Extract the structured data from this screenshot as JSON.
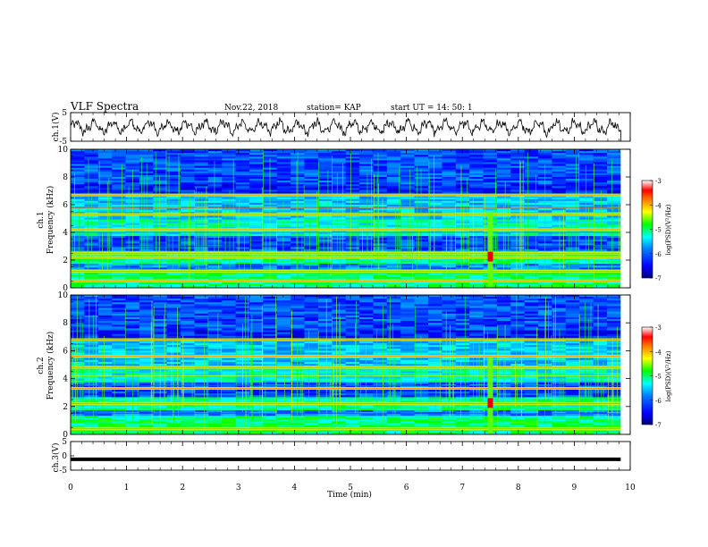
{
  "header": {
    "title": "VLF Spectra",
    "date": "Nov.22, 2018",
    "station": "station= KAP",
    "start": "start UT = 14: 50: 1"
  },
  "colors": {
    "background": "#ffffff",
    "frame": "#000000",
    "colormap": [
      "#000080",
      "#0000ff",
      "#0080ff",
      "#00ffff",
      "#00ff00",
      "#ffff00",
      "#ff8000",
      "#ff0000",
      "#800000"
    ]
  },
  "chart_data": [
    {
      "type": "line",
      "name": "ch1_waveform",
      "ylabel": "ch.1(V)",
      "ylim": [
        -5,
        5
      ],
      "yticks": [
        "5",
        "-5"
      ],
      "xlim": [
        0,
        10
      ],
      "description_series": "VLF waveform voltage vs time, oscillating roughly between -3 and 3 V",
      "series": [
        {
          "x_range": [
            0,
            9.83
          ],
          "y_range": [
            -3.5,
            3.5
          ]
        }
      ]
    },
    {
      "type": "heatmap",
      "name": "ch1_spectrogram",
      "ylabel": "ch.1 Frequency (kHz)",
      "ylim": [
        0,
        10
      ],
      "yticks": [
        "0",
        "2",
        "4",
        "6",
        "8",
        "10"
      ],
      "xlim": [
        0,
        9.83
      ],
      "colorbar": {
        "label": "log(PSD)(V²/Hz)",
        "range": [
          -7,
          -3
        ],
        "ticks": [
          "-3",
          "-4",
          "-5",
          "-6",
          "-7"
        ]
      },
      "features": {
        "strong_bands_khz": [
          0.5,
          1.2,
          2.2,
          2.5,
          4.2,
          5.3,
          6.7
        ],
        "burst_time_min": 7.5
      }
    },
    {
      "type": "heatmap",
      "name": "ch2_spectrogram",
      "ylabel": "ch.2 Frequency (kHz)",
      "ylim": [
        0,
        10
      ],
      "yticks": [
        "0",
        "2",
        "4",
        "6",
        "8",
        "10"
      ],
      "xlim": [
        0,
        9.83
      ],
      "colorbar": {
        "label": "log(PSD)(V²/Hz)",
        "range": [
          -7,
          -3
        ],
        "ticks": [
          "-3",
          "-4",
          "-5",
          "-6",
          "-7"
        ]
      },
      "features": {
        "strong_bands_khz": [
          0.4,
          2.2,
          3.3,
          4.8,
          5.6,
          6.8
        ],
        "burst_time_min": 7.5
      }
    },
    {
      "type": "line",
      "name": "ch3_waveform",
      "ylabel": "ch.3(V)",
      "ylim": [
        -5,
        5
      ],
      "yticks": [
        "5",
        "0",
        "-5"
      ],
      "xlim": [
        0,
        10
      ],
      "series": [
        {
          "x_range": [
            0,
            9.83
          ],
          "y_constant": -1.2
        }
      ]
    }
  ],
  "xaxis": {
    "label": "Time (min)",
    "ticks": [
      "0",
      "1",
      "2",
      "3",
      "4",
      "5",
      "6",
      "7",
      "8",
      "9",
      "10"
    ],
    "range": [
      0,
      10
    ]
  }
}
